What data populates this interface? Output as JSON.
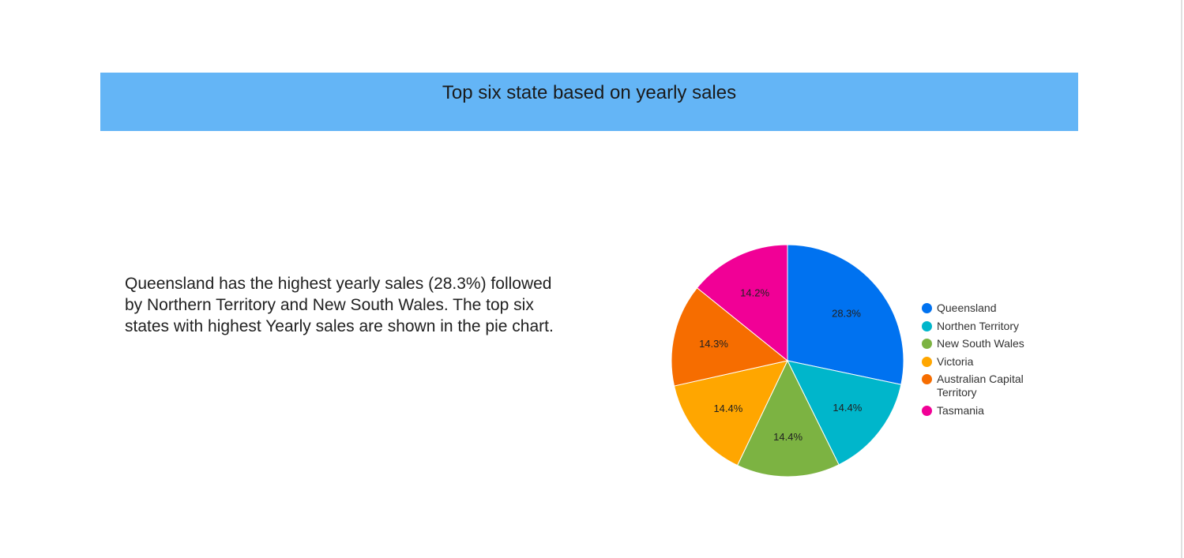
{
  "title": "Top six state based on yearly sales",
  "summary": "Queensland has the highest yearly sales (28.3%) followed by Northern Territory and New South Wales. The top six states with highest Yearly sales are shown in the pie chart.",
  "colors": {
    "banner": "#64b5f6",
    "queensland": "#0072f0",
    "northern_territory": "#00b6cb",
    "new_south_wales": "#7cb342",
    "victoria": "#ffa600",
    "act": "#f66d00",
    "tasmania": "#f10096"
  },
  "chart_data": {
    "type": "pie",
    "title": "Top six state based on yearly sales",
    "categories": [
      "Queensland",
      "Northen Territory",
      "New South Wales",
      "Victoria",
      "Australian Capital Territory",
      "Tasmania"
    ],
    "values": [
      28.3,
      14.4,
      14.4,
      14.4,
      14.3,
      14.2
    ],
    "labels": [
      "28.3%",
      "14.4%",
      "14.4%",
      "14.4%",
      "14.3%",
      "14.2%"
    ],
    "slice_colors": [
      "#0072f0",
      "#00b6cb",
      "#7cb342",
      "#ffa600",
      "#f66d00",
      "#f10096"
    ],
    "legend_position": "right"
  }
}
